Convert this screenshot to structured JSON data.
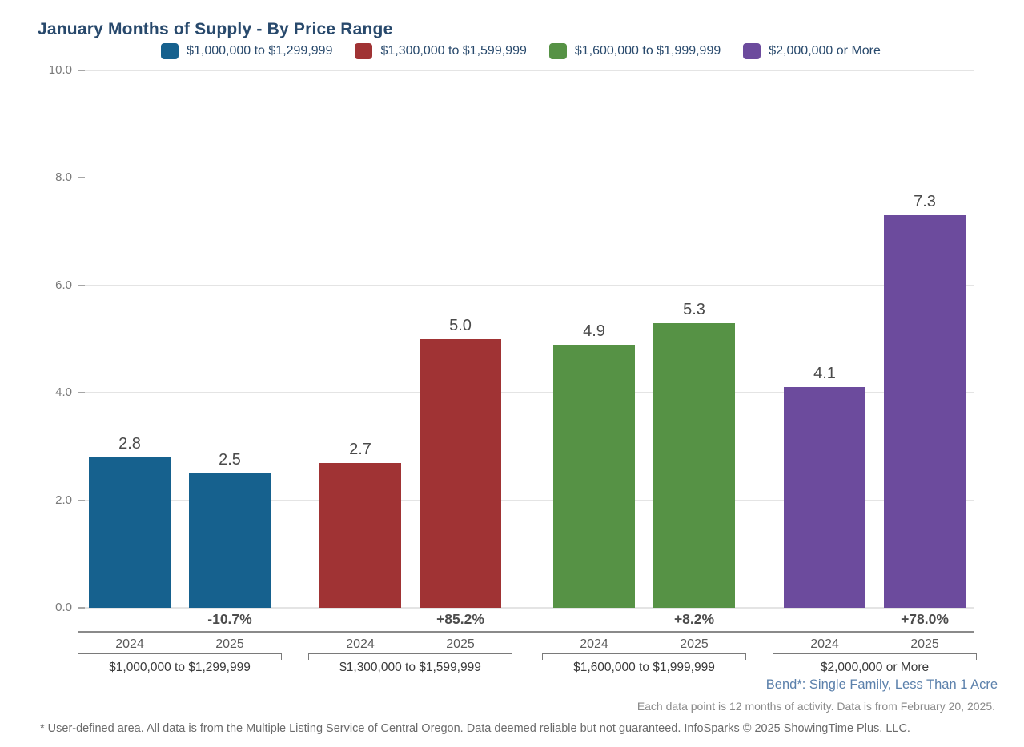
{
  "palette": {
    "heading_text": "#28496c",
    "legend_text": "#28496c",
    "area_label_text": "#5b80ab",
    "grid_line": "#e4e4e4",
    "tick_mark": "#a6a6a6",
    "axis_line": "#8a8a8a",
    "bracket_line": "#7a7a7a"
  },
  "chart_data": {
    "type": "bar",
    "title": "January Months of Supply - By Price Range",
    "categories": [
      "2024",
      "2025"
    ],
    "series": [
      {
        "name": "$1,000,000 to $1,299,999",
        "color": "#16618e",
        "values": [
          2.8,
          2.5
        ],
        "pct_change": "-10.7%"
      },
      {
        "name": "$1,300,000 to $1,599,999",
        "color": "#a03334",
        "values": [
          2.7,
          5.0
        ],
        "pct_change": "+85.2%"
      },
      {
        "name": "$1,600,000 to $1,999,999",
        "color": "#569245",
        "values": [
          4.9,
          5.3
        ],
        "pct_change": "+8.2%"
      },
      {
        "name": "$2,000,000 or More",
        "color": "#6c4b9d",
        "values": [
          4.1,
          7.3
        ],
        "pct_change": "+78.0%"
      }
    ],
    "ylabel": "",
    "xlabel": "",
    "ylim": [
      0,
      10
    ],
    "y_ticks": [
      10.0,
      8.0,
      6.0,
      4.0,
      2.0,
      0.0
    ],
    "grid": true,
    "legend_position": "top"
  },
  "footer": {
    "area_label": "Bend*: Single Family, Less Than 1 Acre",
    "data_note": "Each data point is 12 months of activity. Data is from February 20, 2025.",
    "disclaimer": "* User-defined area. All data is from the Multiple Listing Service of Central Oregon. Data deemed reliable but not guaranteed. InfoSparks © 2025 ShowingTime Plus, LLC."
  }
}
